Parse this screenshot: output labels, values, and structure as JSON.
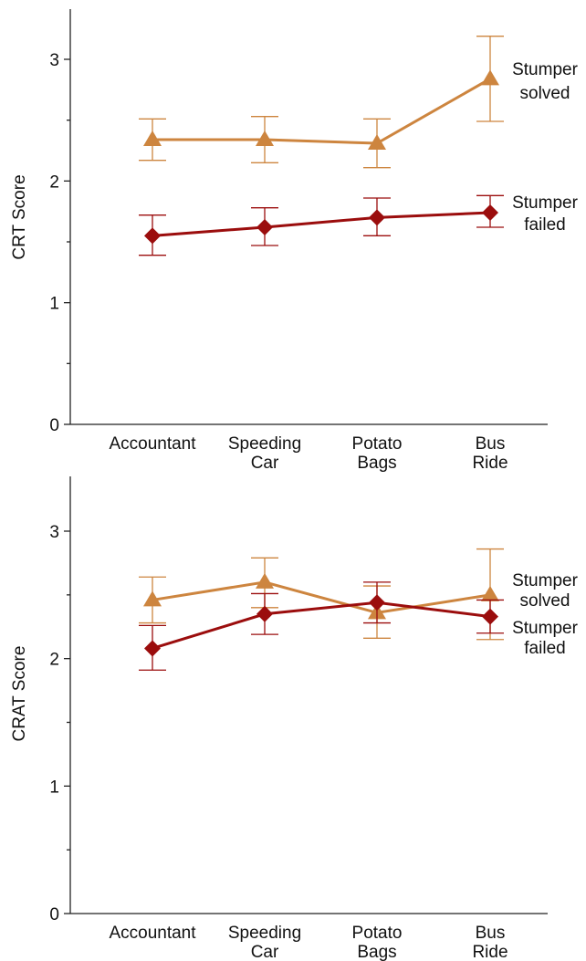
{
  "chart_data": [
    {
      "type": "line",
      "ylabel": "CRT Score",
      "xlabel": "",
      "ylim": [
        0,
        3.4
      ],
      "yticks": [
        0,
        1,
        2,
        3
      ],
      "categories": [
        [
          "Accountant"
        ],
        [
          "Speeding",
          "Car"
        ],
        [
          "Potato",
          "Bags"
        ],
        [
          "Bus",
          "Ride"
        ]
      ],
      "series": [
        {
          "name": [
            "Stumper",
            "solved"
          ],
          "color": "#cd853f",
          "marker": "triangle",
          "values": [
            2.34,
            2.34,
            2.31,
            2.84
          ],
          "err_low": [
            2.17,
            2.15,
            2.11,
            2.49
          ],
          "err_high": [
            2.51,
            2.53,
            2.51,
            3.19
          ]
        },
        {
          "name": [
            "Stumper",
            "failed"
          ],
          "color": "#9b0d0d",
          "marker": "diamond",
          "values": [
            1.55,
            1.62,
            1.7,
            1.74
          ],
          "err_low": [
            1.39,
            1.47,
            1.55,
            1.62
          ],
          "err_high": [
            1.72,
            1.78,
            1.86,
            1.88
          ]
        }
      ]
    },
    {
      "type": "line",
      "ylabel": "CRAT Score",
      "xlabel": "",
      "ylim": [
        0,
        3.4
      ],
      "yticks": [
        0,
        1,
        2,
        3
      ],
      "categories": [
        [
          "Accountant"
        ],
        [
          "Speeding",
          "Car"
        ],
        [
          "Potato",
          "Bags"
        ],
        [
          "Bus",
          "Ride"
        ]
      ],
      "series": [
        {
          "name": [
            "Stumper",
            "solved"
          ],
          "color": "#cd853f",
          "marker": "triangle",
          "values": [
            2.46,
            2.6,
            2.36,
            2.5
          ],
          "err_low": [
            2.28,
            2.4,
            2.16,
            2.15
          ],
          "err_high": [
            2.64,
            2.79,
            2.57,
            2.86
          ]
        },
        {
          "name": [
            "Stumper",
            "failed"
          ],
          "color": "#9b0d0d",
          "marker": "diamond",
          "values": [
            2.08,
            2.35,
            2.44,
            2.33
          ],
          "err_low": [
            1.91,
            2.19,
            2.28,
            2.2
          ],
          "err_high": [
            2.26,
            2.51,
            2.6,
            2.46
          ]
        }
      ]
    }
  ]
}
